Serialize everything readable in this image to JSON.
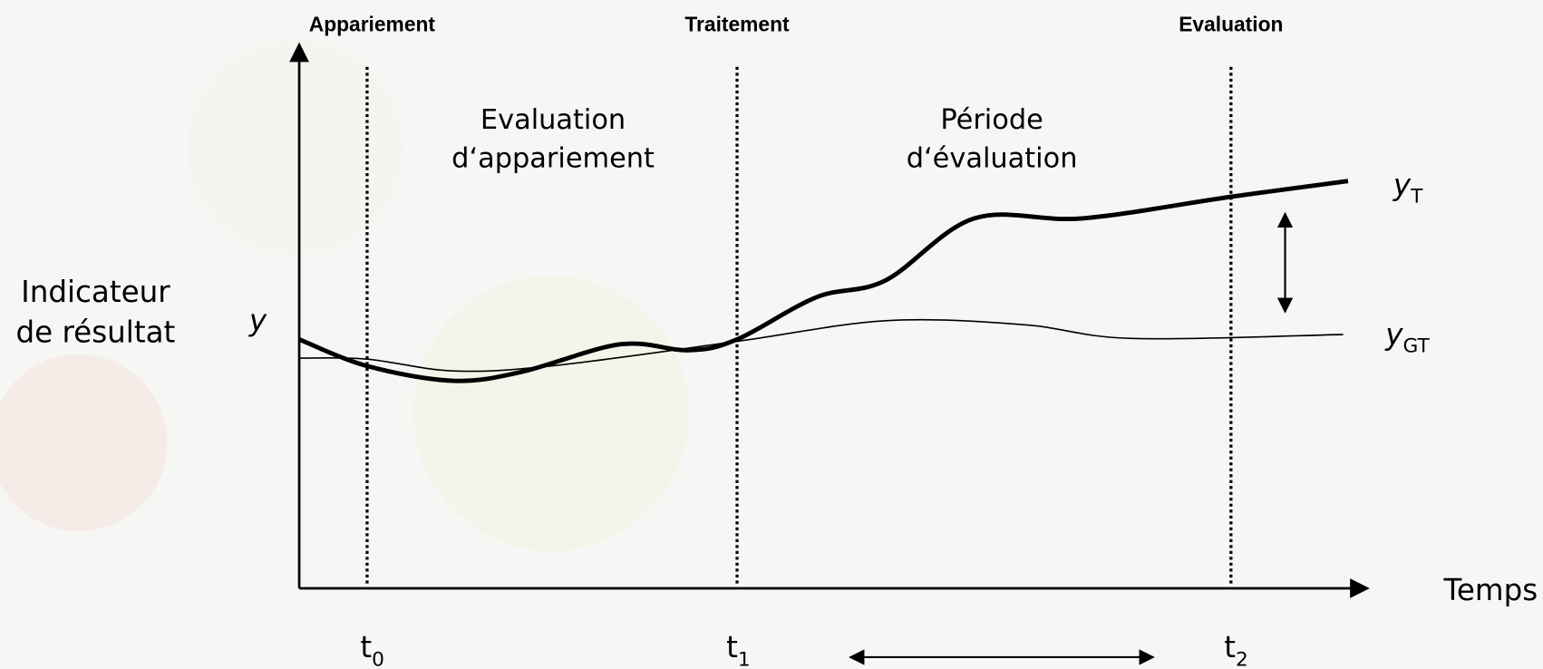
{
  "headers": [
    "Appariement",
    "Traitement",
    "Evaluation"
  ],
  "periods": [
    {
      "lines": [
        "Evaluation",
        "d‘appariement"
      ]
    },
    {
      "lines": [
        "Période",
        "d‘évaluation"
      ]
    }
  ],
  "y_axis": {
    "label_lines": [
      "Indicateur",
      "de résultat"
    ],
    "symbol": "y"
  },
  "x_axis": {
    "label": "Temps"
  },
  "time_points": [
    {
      "main": "t",
      "sub": "0"
    },
    {
      "main": "t",
      "sub": "1"
    },
    {
      "main": "t",
      "sub": "2"
    }
  ],
  "curves": [
    {
      "main": "y",
      "sub": "T"
    },
    {
      "main": "y",
      "sub": "GT"
    }
  ]
}
